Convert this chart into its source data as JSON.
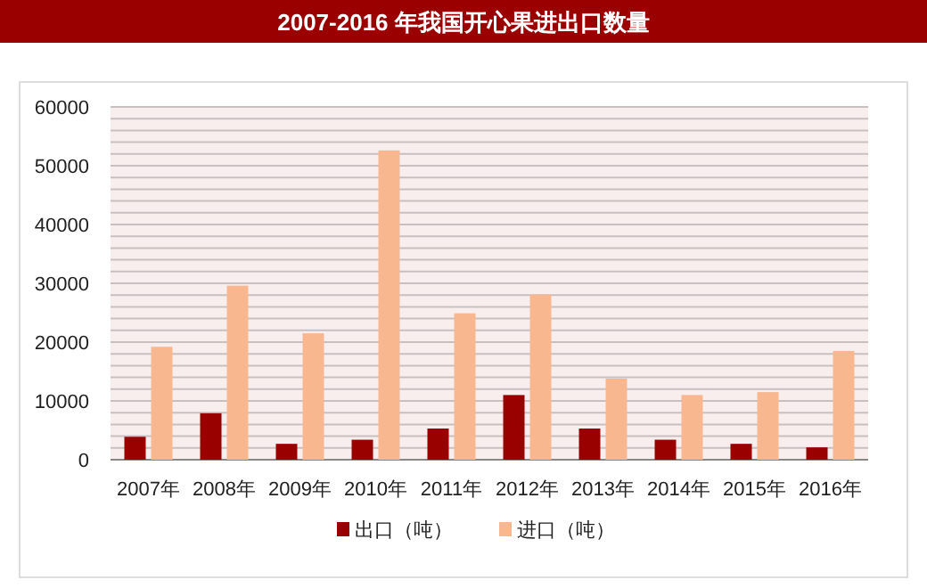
{
  "chart_data": {
    "type": "bar",
    "title": "2007-2016 年我国开心果进出口数量",
    "categories": [
      "2007年",
      "2008年",
      "2009年",
      "2010年",
      "2011年",
      "2012年",
      "2013年",
      "2014年",
      "2015年",
      "2016年"
    ],
    "series": [
      {
        "name": "出口（吨）",
        "color": "#990000",
        "values": [
          3900,
          7900,
          2700,
          3400,
          5300,
          11000,
          5300,
          3400,
          2700,
          2100
        ]
      },
      {
        "name": "进口（吨）",
        "color": "#f8b78f",
        "values": [
          19200,
          29600,
          21500,
          52600,
          24900,
          28100,
          13800,
          11000,
          11500,
          18500
        ]
      }
    ],
    "ylim": [
      0,
      60000
    ],
    "yticks": [
      0,
      {
        "value": 2000,
        "label": null
      },
      {
        "value": 4000,
        "label": null
      },
      {
        "value": 6000,
        "label": null
      },
      {
        "value": 8000,
        "label": null
      },
      10000,
      {
        "value": 12000,
        "label": null
      },
      {
        "value": 14000,
        "label": null
      },
      {
        "value": 16000,
        "label": null
      },
      {
        "value": 18000,
        "label": null
      },
      20000,
      {
        "value": 22000,
        "label": null
      },
      {
        "value": 24000,
        "label": null
      },
      {
        "value": 26000,
        "label": null
      },
      {
        "value": 28000,
        "label": null
      },
      30000,
      {
        "value": 32000,
        "label": null
      },
      {
        "value": 34000,
        "label": null
      },
      {
        "value": 36000,
        "label": null
      },
      {
        "value": 38000,
        "label": null
      },
      40000,
      {
        "value": 42000,
        "label": null
      },
      {
        "value": 44000,
        "label": null
      },
      {
        "value": 46000,
        "label": null
      },
      {
        "value": 48000,
        "label": null
      },
      50000,
      {
        "value": 52000,
        "label": null
      },
      {
        "value": 54000,
        "label": null
      },
      {
        "value": 56000,
        "label": null
      },
      {
        "value": 58000,
        "label": null
      },
      60000
    ],
    "grid": "y",
    "legend": "bottom"
  }
}
